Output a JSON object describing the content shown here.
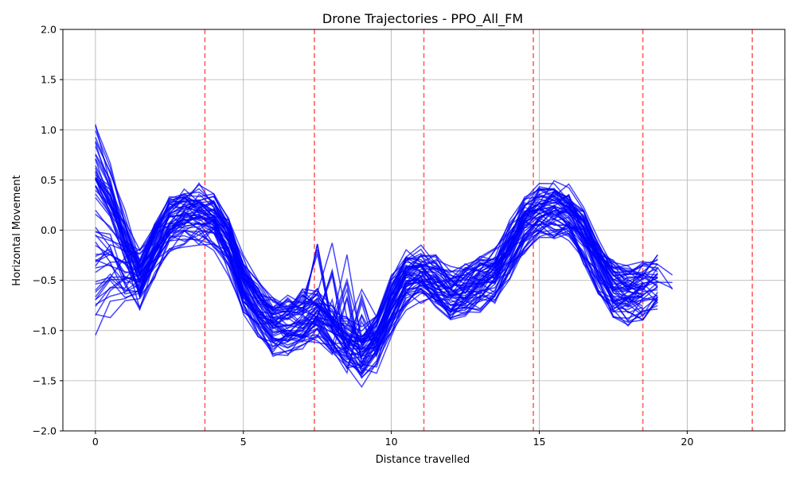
{
  "chart_data": {
    "type": "line",
    "title": "Drone Trajectories - PPO_All_FM",
    "xlabel": "Distance travelled",
    "ylabel": "Horizontal Movement",
    "xlim": [
      -1.1,
      23.3
    ],
    "ylim": [
      -2.0,
      2.0
    ],
    "xticks": [
      0,
      5,
      10,
      15,
      20
    ],
    "yticks": [
      -2.0,
      -1.5,
      -1.0,
      -0.5,
      0.0,
      0.5,
      1.0,
      1.5,
      2.0
    ],
    "xtick_labels": [
      "0",
      "5",
      "10",
      "15",
      "20"
    ],
    "ytick_labels": [
      "−2.0",
      "−1.5",
      "−1.0",
      "−0.5",
      "0.0",
      "0.5",
      "1.0",
      "1.5",
      "2.0"
    ],
    "grid": true,
    "line_color": "#0000ff",
    "vline_color": "#ff4444",
    "vertical_lines_x": [
      3.7,
      7.4,
      11.1,
      14.8,
      18.5,
      22.2
    ],
    "trajectory_count": 60,
    "mean_path": {
      "x": [
        0,
        0.5,
        1.0,
        1.5,
        2.0,
        2.5,
        3.0,
        3.5,
        4.0,
        4.5,
        5.0,
        5.5,
        6.0,
        6.5,
        7.0,
        7.5,
        8.0,
        8.5,
        9.0,
        9.5,
        10.0,
        10.5,
        11.0,
        11.5,
        12.0,
        12.5,
        13.0,
        13.5,
        14.0,
        14.5,
        15.0,
        15.5,
        16.0,
        16.5,
        17.0,
        17.5,
        18.0,
        18.5,
        19.0,
        19.5
      ],
      "y": [
        -0.1,
        -0.25,
        -0.45,
        -0.5,
        -0.2,
        0.05,
        0.12,
        0.15,
        0.1,
        -0.15,
        -0.55,
        -0.8,
        -0.95,
        -0.95,
        -0.9,
        -0.85,
        -1.0,
        -1.15,
        -1.25,
        -1.1,
        -0.75,
        -0.5,
        -0.45,
        -0.55,
        -0.65,
        -0.6,
        -0.55,
        -0.45,
        -0.2,
        0.05,
        0.15,
        0.2,
        0.15,
        -0.05,
        -0.35,
        -0.6,
        -0.65,
        -0.6,
        -0.55,
        -0.6
      ]
    }
  }
}
